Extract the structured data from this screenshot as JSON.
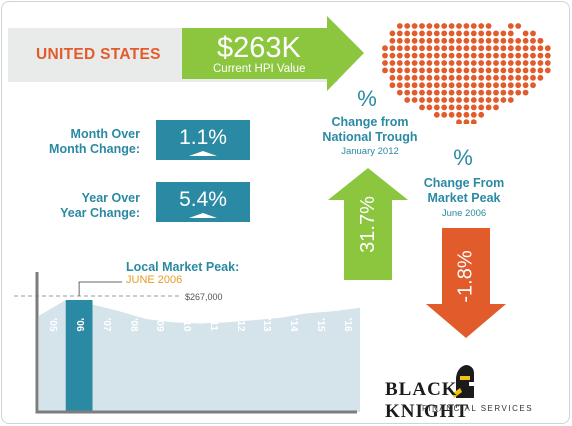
{
  "header": {
    "region": "UNITED STATES",
    "hpi_value": "$263K",
    "hpi_label": "Current HPI Value"
  },
  "metrics": [
    {
      "label_line1": "Month Over",
      "label_line2": "Month Change:",
      "value": "1.1%"
    },
    {
      "label_line1": "Year Over",
      "label_line2": "Year Change:",
      "value": "5.4%"
    }
  ],
  "trough": {
    "pct_symbol": "%",
    "title_line1": "Change from",
    "title_line2": "National Trough",
    "date": "January 2012",
    "value": "31.7%"
  },
  "peak": {
    "pct_symbol": "%",
    "title_line1": "Change From",
    "title_line2": "Market Peak",
    "date": "June 2006",
    "value": "-1.8%"
  },
  "market_chart": {
    "title": "Local Market Peak:",
    "peak_date": "JUNE 2006",
    "peak_value": "$267,000",
    "years": [
      "'05",
      "'06",
      "'07",
      "'08",
      "'09",
      "'10",
      "'11",
      "'12",
      "'13",
      "'14",
      "'15",
      "'16"
    ],
    "colors": {
      "area": "#d5e3ea",
      "highlight": "#2b8aa3",
      "axis": "#7d7d7d"
    }
  },
  "logo": {
    "name": "BLACK KNIGHT",
    "subtitle": "FINANCIAL SERVICES"
  },
  "colors": {
    "orange": "#e25b2b",
    "green": "#8cc63f",
    "teal": "#2b8aa3",
    "band": "#e9eaea"
  }
}
